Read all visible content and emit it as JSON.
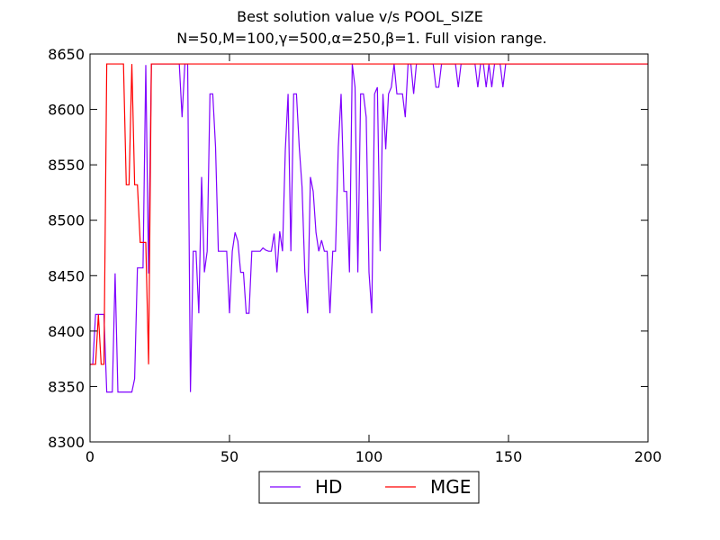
{
  "chart_data": {
    "type": "line",
    "title": "Best solution value v/s POOL_SIZE",
    "subtitle": "N=50,M=100,γ=500,α=250,β=1. Full vision range.",
    "xlabel": "",
    "ylabel": "",
    "xlim": [
      0,
      200
    ],
    "ylim": [
      8300,
      8650
    ],
    "xticks": [
      0,
      50,
      100,
      150,
      200
    ],
    "yticks": [
      8300,
      8350,
      8400,
      8450,
      8500,
      8550,
      8600,
      8650
    ],
    "grid": false,
    "legend_position": "bottom-center",
    "series": [
      {
        "name": "HD",
        "color": "#7f00ff",
        "points": [
          [
            0,
            8370
          ],
          [
            1,
            8370
          ],
          [
            2,
            8415
          ],
          [
            3,
            8415
          ],
          [
            4,
            8415
          ],
          [
            5,
            8415
          ],
          [
            6,
            8345
          ],
          [
            7,
            8345
          ],
          [
            8,
            8345
          ],
          [
            9,
            8452
          ],
          [
            10,
            8345
          ],
          [
            11,
            8345
          ],
          [
            12,
            8345
          ],
          [
            13,
            8345
          ],
          [
            14,
            8345
          ],
          [
            15,
            8345
          ],
          [
            16,
            8357
          ],
          [
            17,
            8457
          ],
          [
            18,
            8457
          ],
          [
            19,
            8457
          ],
          [
            20,
            8640
          ],
          [
            21,
            8452
          ],
          [
            22,
            8641
          ],
          [
            23,
            8641
          ],
          [
            24,
            8641
          ],
          [
            25,
            8641
          ],
          [
            26,
            8641
          ],
          [
            27,
            8641
          ],
          [
            28,
            8641
          ],
          [
            29,
            8641
          ],
          [
            30,
            8641
          ],
          [
            31,
            8641
          ],
          [
            32,
            8641
          ],
          [
            33,
            8593
          ],
          [
            34,
            8641
          ],
          [
            35,
            8641
          ],
          [
            36,
            8345
          ],
          [
            37,
            8472
          ],
          [
            38,
            8472
          ],
          [
            39,
            8416
          ],
          [
            40,
            8539
          ],
          [
            41,
            8453
          ],
          [
            42,
            8472
          ],
          [
            43,
            8614
          ],
          [
            44,
            8614
          ],
          [
            45,
            8566
          ],
          [
            46,
            8472
          ],
          [
            47,
            8472
          ],
          [
            48,
            8472
          ],
          [
            49,
            8472
          ],
          [
            50,
            8416
          ],
          [
            51,
            8472
          ],
          [
            52,
            8489
          ],
          [
            53,
            8481
          ],
          [
            54,
            8453
          ],
          [
            55,
            8453
          ],
          [
            56,
            8416
          ],
          [
            57,
            8416
          ],
          [
            58,
            8472
          ],
          [
            59,
            8472
          ],
          [
            60,
            8472
          ],
          [
            61,
            8472
          ],
          [
            62,
            8475
          ],
          [
            63,
            8473
          ],
          [
            64,
            8472
          ],
          [
            65,
            8472
          ],
          [
            66,
            8488
          ],
          [
            67,
            8453
          ],
          [
            68,
            8490
          ],
          [
            69,
            8472
          ],
          [
            70,
            8563
          ],
          [
            71,
            8614
          ],
          [
            72,
            8472
          ],
          [
            73,
            8614
          ],
          [
            74,
            8614
          ],
          [
            75,
            8566
          ],
          [
            76,
            8530
          ],
          [
            77,
            8453
          ],
          [
            78,
            8416
          ],
          [
            79,
            8539
          ],
          [
            80,
            8526
          ],
          [
            81,
            8489
          ],
          [
            82,
            8472
          ],
          [
            83,
            8482
          ],
          [
            84,
            8472
          ],
          [
            85,
            8472
          ],
          [
            86,
            8416
          ],
          [
            87,
            8472
          ],
          [
            88,
            8472
          ],
          [
            89,
            8566
          ],
          [
            90,
            8614
          ],
          [
            91,
            8526
          ],
          [
            92,
            8526
          ],
          [
            93,
            8453
          ],
          [
            94,
            8641
          ],
          [
            95,
            8620
          ],
          [
            96,
            8453
          ],
          [
            97,
            8614
          ],
          [
            98,
            8614
          ],
          [
            99,
            8593
          ],
          [
            100,
            8453
          ],
          [
            101,
            8416
          ],
          [
            102,
            8614
          ],
          [
            103,
            8620
          ],
          [
            104,
            8472
          ],
          [
            105,
            8614
          ],
          [
            106,
            8564
          ],
          [
            107,
            8614
          ],
          [
            108,
            8620
          ],
          [
            109,
            8641
          ],
          [
            110,
            8614
          ],
          [
            111,
            8614
          ],
          [
            112,
            8614
          ],
          [
            113,
            8593
          ],
          [
            114,
            8641
          ],
          [
            115,
            8641
          ],
          [
            116,
            8614
          ],
          [
            117,
            8641
          ],
          [
            118,
            8641
          ],
          [
            119,
            8641
          ],
          [
            120,
            8641
          ],
          [
            121,
            8641
          ],
          [
            122,
            8641
          ],
          [
            123,
            8641
          ],
          [
            124,
            8620
          ],
          [
            125,
            8620
          ],
          [
            126,
            8641
          ],
          [
            127,
            8641
          ],
          [
            128,
            8641
          ],
          [
            129,
            8641
          ],
          [
            130,
            8641
          ],
          [
            131,
            8641
          ],
          [
            132,
            8620
          ],
          [
            133,
            8641
          ],
          [
            134,
            8641
          ],
          [
            135,
            8641
          ],
          [
            136,
            8641
          ],
          [
            137,
            8641
          ],
          [
            138,
            8641
          ],
          [
            139,
            8620
          ],
          [
            140,
            8641
          ],
          [
            141,
            8641
          ],
          [
            142,
            8620
          ],
          [
            143,
            8641
          ],
          [
            144,
            8620
          ],
          [
            145,
            8641
          ],
          [
            146,
            8641
          ],
          [
            147,
            8641
          ],
          [
            148,
            8620
          ],
          [
            149,
            8641
          ],
          [
            150,
            8641
          ],
          [
            200,
            8641
          ]
        ]
      },
      {
        "name": "MGE",
        "color": "#ff0000",
        "points": [
          [
            0,
            8370
          ],
          [
            1,
            8370
          ],
          [
            2,
            8370
          ],
          [
            3,
            8415
          ],
          [
            4,
            8370
          ],
          [
            5,
            8370
          ],
          [
            6,
            8641
          ],
          [
            7,
            8641
          ],
          [
            8,
            8641
          ],
          [
            9,
            8641
          ],
          [
            10,
            8641
          ],
          [
            11,
            8641
          ],
          [
            12,
            8641
          ],
          [
            13,
            8532
          ],
          [
            14,
            8532
          ],
          [
            15,
            8641
          ],
          [
            16,
            8532
          ],
          [
            17,
            8532
          ],
          [
            18,
            8480
          ],
          [
            19,
            8480
          ],
          [
            20,
            8480
          ],
          [
            21,
            8370
          ],
          [
            22,
            8641
          ],
          [
            23,
            8641
          ],
          [
            200,
            8641
          ]
        ]
      }
    ]
  }
}
